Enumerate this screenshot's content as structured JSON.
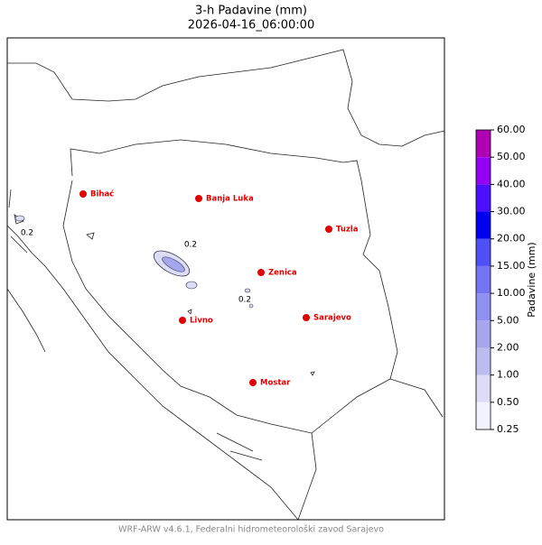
{
  "header": {
    "title": "3-h Padavine (mm)",
    "subtitle": "2026-04-16_06:00:00"
  },
  "cities": [
    "Bihać",
    "Banja Luka",
    "Tuzla",
    "Zenica",
    "Sarajevo",
    "Livno",
    "Mostar"
  ],
  "contour_labels": [
    "0.2",
    "0.2",
    "0.2"
  ],
  "colorbar": {
    "label": "Padavine (mm)",
    "ticks": [
      {
        "value": 0.25,
        "label": "0.25"
      },
      {
        "value": 0.5,
        "label": "0.50"
      },
      {
        "value": 1,
        "label": "1.00"
      },
      {
        "value": 2,
        "label": "2.00"
      },
      {
        "value": 5,
        "label": "5.00"
      },
      {
        "value": 10,
        "label": "10.00"
      },
      {
        "value": 15,
        "label": "15.00"
      },
      {
        "value": 20,
        "label": "20.00"
      },
      {
        "value": 30,
        "label": "30.00"
      },
      {
        "value": 40,
        "label": "40.00"
      },
      {
        "value": 50,
        "label": "50.00"
      },
      {
        "value": 60,
        "label": "60.00"
      }
    ],
    "colors": [
      "#f2f2fc",
      "#dcdcf6",
      "#bcbcf0",
      "#a6a6ee",
      "#9090f0",
      "#7474f2",
      "#4f4ff6",
      "#0000f0",
      "#4a10ff",
      "#9400f4",
      "#b000b4"
    ]
  },
  "footer": "WRF-ARW v4.6.1, Federalni hidrometeorološki zavod Sarajevo"
}
